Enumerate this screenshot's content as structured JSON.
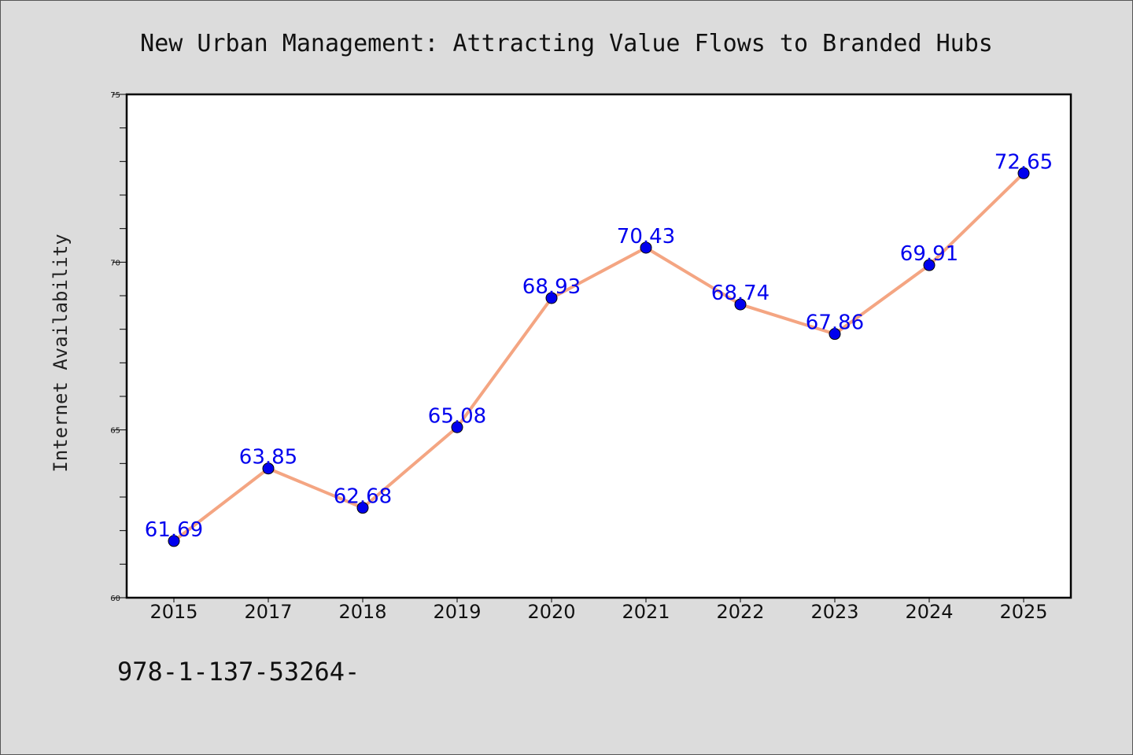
{
  "chart_data": {
    "type": "line",
    "title": "New Urban Management: Attracting Value Flows to Branded Hubs",
    "xlabel": "",
    "ylabel": "Internet Availability",
    "categories": [
      "2015",
      "2017",
      "2018",
      "2019",
      "2020",
      "2021",
      "2022",
      "2023",
      "2024",
      "2025"
    ],
    "series": [
      {
        "values": [
          61.69,
          63.85,
          62.68,
          65.08,
          68.93,
          70.43,
          68.74,
          67.86,
          69.91,
          72.65
        ],
        "labels": [
          "61.69",
          "63.85",
          "62.68",
          "65.08",
          "68.93",
          "70.43",
          "68.74",
          "67.86",
          "69.91",
          "72.65"
        ],
        "line_color": "#f4a582",
        "marker_color": "#0000ee"
      }
    ],
    "ylim": [
      60,
      75
    ],
    "yticks": [
      60,
      65,
      70,
      75
    ],
    "ytick_labels": [
      "60",
      "65",
      "70",
      "75"
    ],
    "grid": false,
    "legend": "none"
  },
  "footer": {
    "text": "978-1-137-53264-"
  }
}
